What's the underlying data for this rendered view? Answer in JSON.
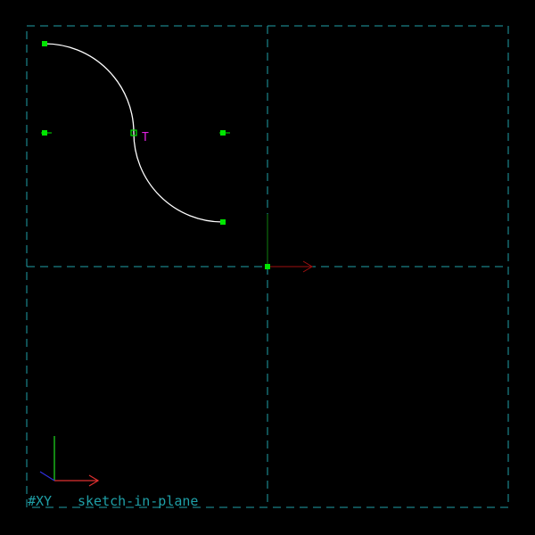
{
  "colors": {
    "background": "#000000",
    "workplane": "#1fa0a8",
    "curve": "#ffffff",
    "point": "#00e600",
    "constraint": "#e020e0",
    "axis_x": "#e03030",
    "axis_y": "#20e020",
    "axis_z": "#3030e0",
    "axis_arrow_dim": "#a01010",
    "axis_line_dim": "#108010"
  },
  "workplane": {
    "name": "#XY",
    "group": "sketch-in-plane"
  },
  "constraints": [
    {
      "symbol": "T",
      "kind": "tangent"
    }
  ],
  "icons": {
    "point": "point-marker-icon",
    "axis_triad": "axis-triad-icon"
  }
}
